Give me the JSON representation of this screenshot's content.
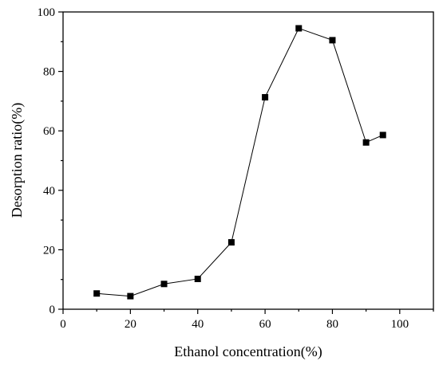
{
  "chart_data": {
    "type": "line",
    "title": "",
    "xlabel": "Ethanol concentration(%)",
    "ylabel": "Desorption ratio(%)",
    "xlim": [
      0,
      110
    ],
    "ylim": [
      0,
      100
    ],
    "x_ticks": [
      0,
      20,
      40,
      60,
      80,
      100
    ],
    "y_ticks": [
      0,
      20,
      40,
      60,
      80,
      100
    ],
    "x_tick_labels": [
      "0",
      "20",
      "40",
      "60",
      "80",
      "100"
    ],
    "y_tick_labels": [
      "0",
      "20",
      "40",
      "60",
      "80",
      "100"
    ],
    "grid": false,
    "legend": "none",
    "marker": "square",
    "series": [
      {
        "x": [
          10,
          20,
          30,
          40,
          50,
          60,
          70,
          80,
          90,
          95
        ],
        "values": [
          5.3,
          4.4,
          8.5,
          10.2,
          22.5,
          71.3,
          94.5,
          90.5,
          56.1,
          58.6
        ]
      }
    ]
  }
}
